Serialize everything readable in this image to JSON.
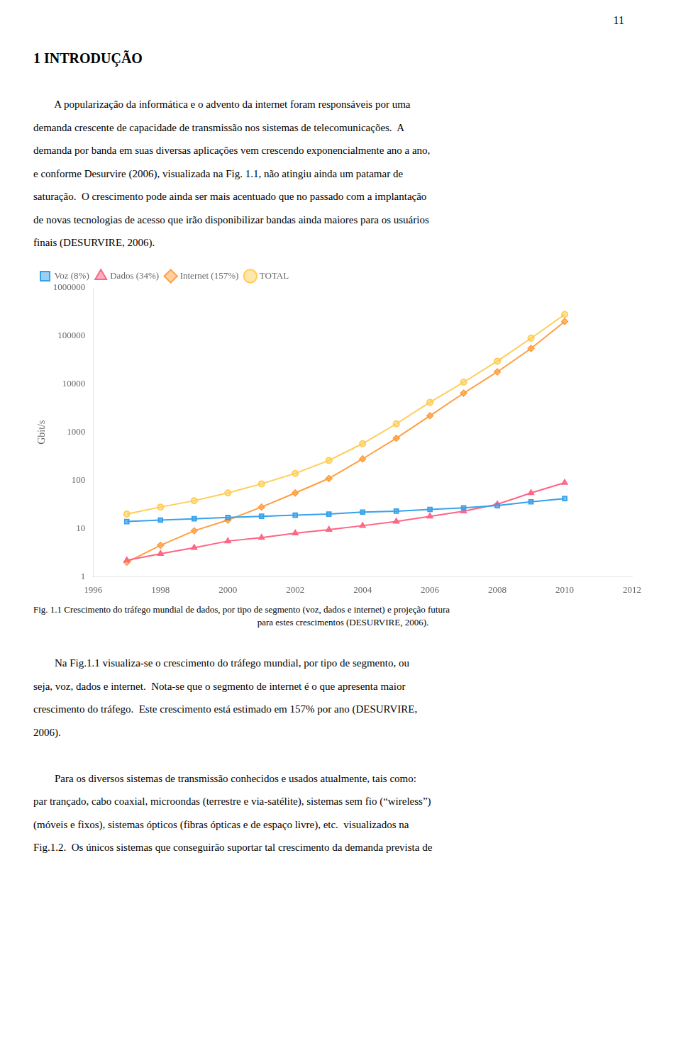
{
  "page": {
    "number": "11",
    "heading": "1  INTRODUÇÃO",
    "before": [
      [
        "        A popularização da informática e o advento da internet foram responsáveis por uma",
        "demanda crescente de capacidade de transmissão nos sistemas de telecomunicações.  A",
        "demanda por banda em suas diversas aplicações vem crescendo exponencialmente ano a ano,",
        "e conforme Desurvire (2006), visualizada na Fig. 1.1, não atingiu ainda um patamar de",
        "saturação.  O crescimento pode ainda ser mais acentuado que no passado com a implantação",
        "de novas tecnologias de acesso que irão disponibilizar bandas ainda maiores para os usuários",
        "finais (DESURVIRE, 2006)."
      ]
    ],
    "after": [
      [
        "        Na Fig.1.1 visualiza-se o crescimento do tráfego mundial, por tipo de segmento, ou",
        "seja, voz, dados e internet.  Nota-se que o segmento de internet é o que apresenta maior",
        "crescimento do tráfego.  Este crescimento está estimado em 157% por ano (DESURVIRE,",
        "2006)."
      ],
      [
        "        Para os diversos sistemas de transmissão conhecidos e usados atualmente, tais como:",
        "par trançado, cabo coaxial, microondas (terrestre e via-satélite), sistemas sem fio (“wireless”)",
        "(móveis e fixos), sistemas ópticos (fibras ópticas e de espaço livre), etc.  visualizados na",
        "Fig.1.2.  Os únicos sistemas que conseguirão suportar tal crescimento da demanda prevista de"
      ]
    ]
  },
  "chart_data": {
    "type": "line",
    "caption": [
      "Fig. 1.1 Crescimento do tráfego mundial de dados, por tipo de segmento (voz, dados e internet) e projeção futura",
      "para estes crescimentos (DESURVIRE, 2006)."
    ],
    "ylabel": "Gbit/s",
    "log": "y",
    "grid": false,
    "legend": "upper left",
    "xlim": [
      1996,
      2012
    ],
    "xticks": [
      1996,
      1998,
      2000,
      2002,
      2004,
      2006,
      2008,
      2010,
      2012
    ],
    "ylim": [
      1,
      1000000
    ],
    "yticks": [
      1,
      10,
      100,
      1000,
      10000,
      100000,
      1000000
    ],
    "x": [
      1997,
      1998,
      1999,
      2000,
      2001,
      2002,
      2003,
      2004,
      2005,
      2006,
      2007,
      2008,
      2009,
      2010
    ],
    "series": [
      {
        "name": "Voz (8%)",
        "marker": "square",
        "values": [
          14,
          15,
          16,
          17,
          18,
          19,
          20,
          22,
          23,
          25,
          27,
          30,
          36,
          42
        ]
      },
      {
        "name": "Dados (34%)",
        "marker": "triangle",
        "values": [
          2.2,
          3.0,
          4.0,
          5.5,
          6.5,
          8.0,
          9.5,
          11.5,
          14.0,
          18.0,
          23.0,
          32.0,
          55.0,
          90.0
        ]
      },
      {
        "name": "Internet (157%)",
        "marker": "diamond",
        "values": [
          2.0,
          4.5,
          9.0,
          15.0,
          28.0,
          55.0,
          110.0,
          280.0,
          750.0,
          2200.0,
          6500.0,
          18000.0,
          55000.0,
          200000.0
        ]
      },
      {
        "name": "TOTAL",
        "marker": "circle",
        "values": [
          20.0,
          28.0,
          38.0,
          55.0,
          85.0,
          140.0,
          260.0,
          580.0,
          1500.0,
          4200.0,
          11000.0,
          30000.0,
          90000.0,
          280000.0
        ]
      }
    ]
  }
}
